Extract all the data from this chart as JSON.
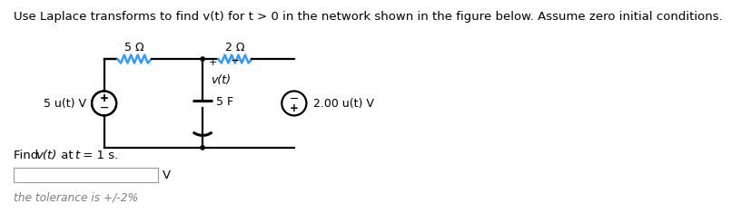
{
  "title": "Use Laplace transforms to find v(t) for t > 0 in the network shown in the figure below. Assume zero initial conditions.",
  "title_color": "#000000",
  "title_fontsize": 9.5,
  "bg_color": "#ffffff",
  "circuit": {
    "left_source_label": "5 u(t) V",
    "resistor1_label": "5 Ω",
    "resistor2_label": "2 Ω",
    "capacitor_label": "5 F",
    "vcap_plus": "+",
    "vcap_minus": "−",
    "vcap_label": "v(t)",
    "right_source_label": "2.00 u(t) V"
  },
  "find_label": "Find",
  "find_vt": "v(t)",
  "find_rest": " at ",
  "find_t": "t",
  "find_end": " = 1 s.",
  "unit_label": "V",
  "tolerance_text": "the tolerance is +/-2%",
  "wire_color": "#000000",
  "resistor_color": "#3399ff",
  "component_color": "#000000",
  "text_color": "#000000",
  "tolerance_color": "#7f7f7f"
}
